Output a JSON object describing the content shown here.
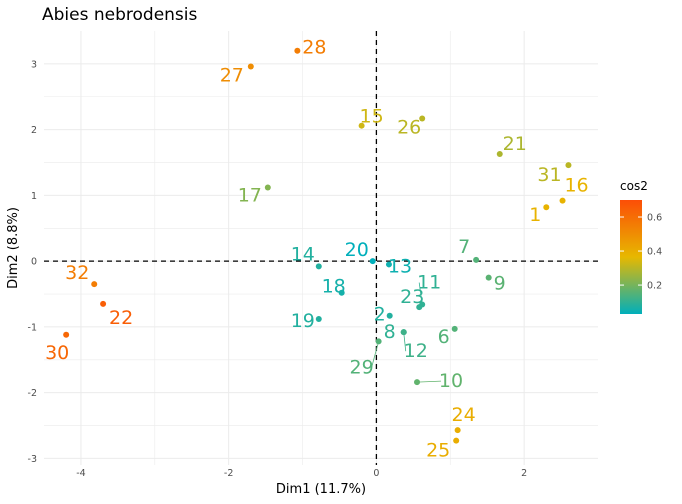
{
  "chart_data": {
    "type": "scatter",
    "title": "Abies nebrodensis",
    "xlabel": "Dim1 (11.7%)",
    "ylabel": "Dim2 (8.8%)",
    "xlim": [
      -4.5,
      3.0
    ],
    "ylim": [
      -3.1,
      3.5
    ],
    "x_ticks": [
      -4,
      -2,
      0,
      2
    ],
    "y_ticks": [
      -3,
      -2,
      -1,
      0,
      1,
      2,
      3
    ],
    "grid": true,
    "reference_lines": {
      "x": 0,
      "y": 0,
      "style": "dashed"
    },
    "legend": {
      "title": "cos2",
      "position": "right",
      "ticks": [
        0.2,
        0.4,
        0.6
      ],
      "range": [
        0.03,
        0.7
      ],
      "colors": [
        "#00AFBB",
        "#E7B800",
        "#FC4E07"
      ]
    },
    "points": [
      {
        "label": "1",
        "x": 2.3,
        "y": 0.82,
        "cos2": 0.38
      },
      {
        "label": "2",
        "x": 0.18,
        "y": -0.83,
        "cos2": 0.08
      },
      {
        "label": "6",
        "x": 1.06,
        "y": -1.03,
        "cos2": 0.15
      },
      {
        "label": "7",
        "x": 1.35,
        "y": 0.02,
        "cos2": 0.15
      },
      {
        "label": "8",
        "x": 0.37,
        "y": -1.08,
        "cos2": 0.1
      },
      {
        "label": "9",
        "x": 1.52,
        "y": -0.25,
        "cos2": 0.16
      },
      {
        "label": "10",
        "x": 0.55,
        "y": -1.84,
        "cos2": 0.17
      },
      {
        "label": "11",
        "x": 0.62,
        "y": -0.66,
        "cos2": 0.1
      },
      {
        "label": "12",
        "x": 0.37,
        "y": -1.08,
        "cos2": 0.12
      },
      {
        "label": "13",
        "x": 0.17,
        "y": -0.05,
        "cos2": 0.05
      },
      {
        "label": "14",
        "x": -0.78,
        "y": -0.08,
        "cos2": 0.08
      },
      {
        "label": "15",
        "x": -0.2,
        "y": 2.06,
        "cos2": 0.33
      },
      {
        "label": "16",
        "x": 2.52,
        "y": 0.92,
        "cos2": 0.38
      },
      {
        "label": "17",
        "x": -1.47,
        "y": 1.12,
        "cos2": 0.22
      },
      {
        "label": "18",
        "x": -0.47,
        "y": -0.48,
        "cos2": 0.06
      },
      {
        "label": "19",
        "x": -0.78,
        "y": -0.88,
        "cos2": 0.08
      },
      {
        "label": "20",
        "x": -0.05,
        "y": 0.0,
        "cos2": 0.03
      },
      {
        "label": "21",
        "x": 1.67,
        "y": 1.63,
        "cos2": 0.28
      },
      {
        "label": "22",
        "x": -3.7,
        "y": -0.65,
        "cos2": 0.65
      },
      {
        "label": "23",
        "x": 0.58,
        "y": -0.7,
        "cos2": 0.1
      },
      {
        "label": "24",
        "x": 1.1,
        "y": -2.57,
        "cos2": 0.4
      },
      {
        "label": "25",
        "x": 1.08,
        "y": -2.73,
        "cos2": 0.4
      },
      {
        "label": "26",
        "x": 0.62,
        "y": 2.17,
        "cos2": 0.3
      },
      {
        "label": "27",
        "x": -1.7,
        "y": 2.96,
        "cos2": 0.5
      },
      {
        "label": "28",
        "x": -1.07,
        "y": 3.2,
        "cos2": 0.55
      },
      {
        "label": "29",
        "x": 0.03,
        "y": -1.22,
        "cos2": 0.15
      },
      {
        "label": "30",
        "x": -4.2,
        "y": -1.12,
        "cos2": 0.62
      },
      {
        "label": "31",
        "x": 2.6,
        "y": 1.46,
        "cos2": 0.3
      },
      {
        "label": "32",
        "x": -3.82,
        "y": -0.35,
        "cos2": 0.55
      }
    ]
  }
}
